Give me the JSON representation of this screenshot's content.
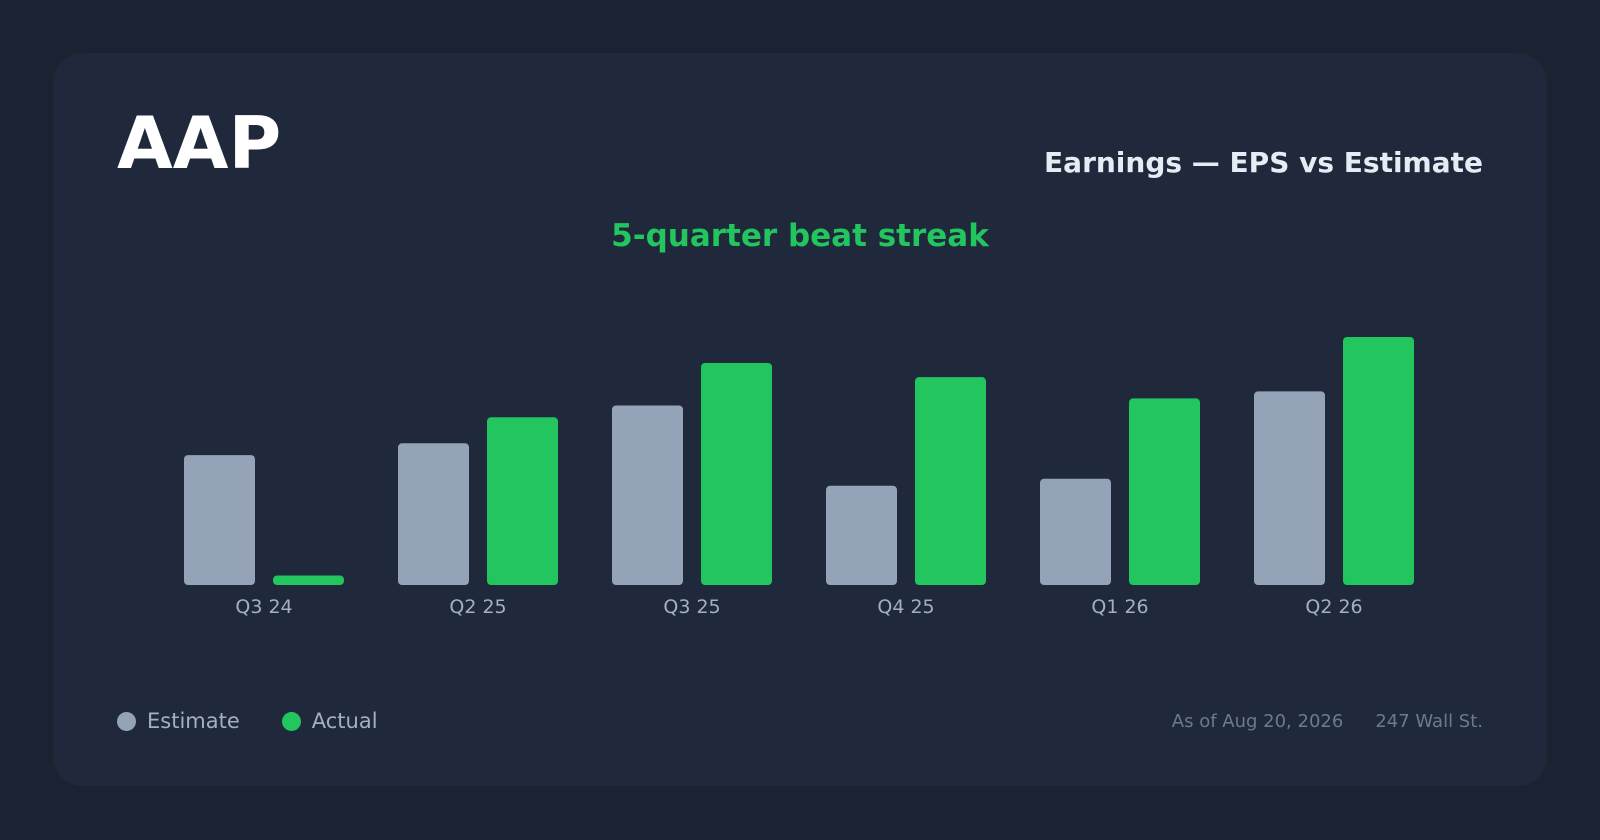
{
  "header": {
    "ticker": "AAP",
    "subtitle": "Earnings — EPS vs Estimate",
    "headline": "5-quarter beat streak"
  },
  "legend": {
    "estimate_label": "Estimate",
    "actual_label": "Actual"
  },
  "footer": {
    "as_of": "As of Aug 20, 2026",
    "source": "247 Wall St."
  },
  "colors": {
    "estimate": "#94a3b8",
    "actual": "#22c55e",
    "tick_label": "#a3b0c2"
  },
  "chart_data": {
    "type": "bar",
    "categories": [
      "Q3 24",
      "Q2 25",
      "Q3 25",
      "Q4 25",
      "Q1 26",
      "Q2 26"
    ],
    "series": [
      {
        "name": "Estimate",
        "values": [
          0.55,
          0.6,
          0.76,
          0.42,
          0.45,
          0.82
        ]
      },
      {
        "name": "Actual",
        "values": [
          0.04,
          0.71,
          0.94,
          0.88,
          0.79,
          1.05
        ]
      }
    ],
    "ylim": [
      0,
      1.05
    ],
    "grid": false,
    "legend_position": "bottom-left"
  }
}
